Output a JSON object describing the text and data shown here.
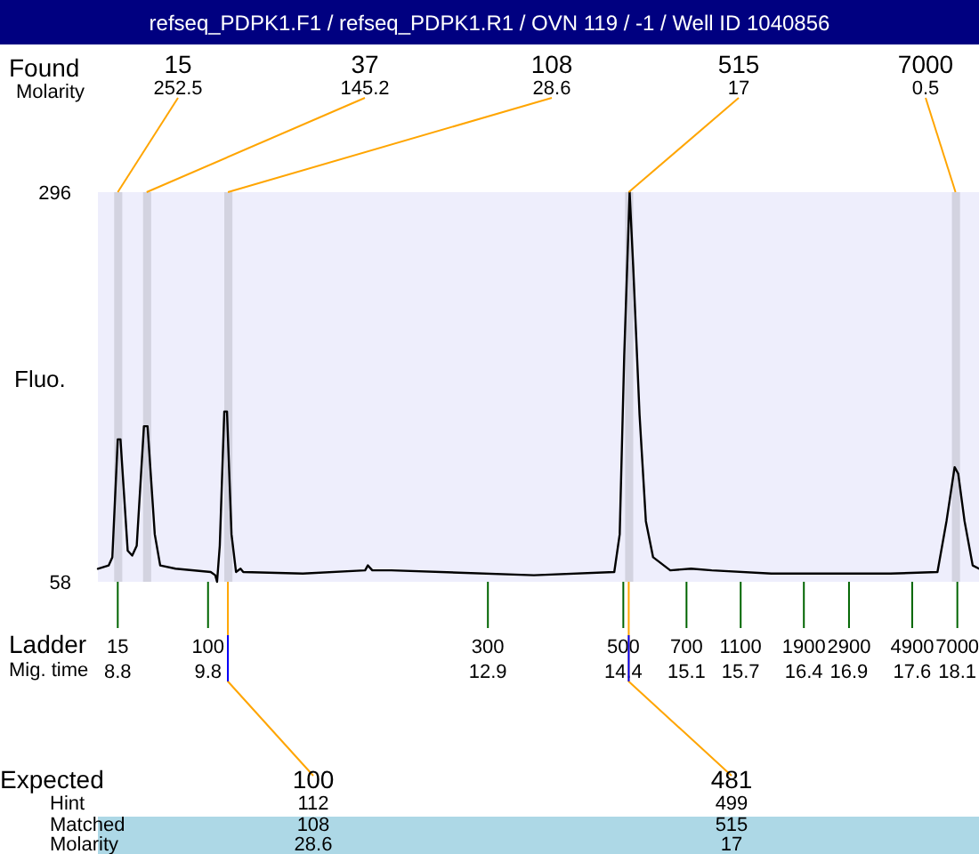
{
  "chart_data": {
    "type": "line",
    "title": "refseq_PDPK1.F1 / refseq_PDPK1.R1 / OVN 119 / -1 / Well ID 1040856",
    "xlabel": "Mig. time",
    "ylabel": "Fluo.",
    "xlim": [
      8.58,
      18.34
    ],
    "ylim": [
      58,
      296
    ],
    "xticks": [
      8.8,
      9.8,
      12.9,
      14.4,
      15.1,
      15.7,
      16.4,
      16.9,
      17.6,
      18.1
    ],
    "yticks": [
      58,
      296
    ],
    "grid": false,
    "marker": "none",
    "line_style": "solid",
    "series": [
      {
        "color": "#000000",
        "x": [
          8.58,
          8.7,
          8.74,
          8.8,
          8.83,
          8.91,
          8.96,
          9.01,
          9.09,
          9.13,
          9.21,
          9.27,
          9.44,
          9.83,
          9.88,
          9.9,
          9.93,
          9.98,
          10.01,
          10.06,
          10.11,
          10.16,
          10.19,
          10.85,
          11.54,
          11.57,
          11.62,
          11.83,
          13.41,
          14.3,
          14.36,
          14.41,
          14.47,
          14.51,
          14.58,
          14.65,
          14.73,
          14.92,
          15.15,
          15.38,
          16.04,
          17.36,
          17.88,
          17.98,
          18.07,
          18.11,
          18.18,
          18.27,
          18.34
        ],
        "values": [
          66,
          68,
          73,
          145,
          145,
          77,
          74,
          80,
          153,
          153,
          87,
          68,
          66,
          64,
          62,
          58,
          80,
          162,
          162,
          87,
          64,
          66,
          64,
          63,
          65,
          68,
          65,
          65,
          62,
          64,
          87,
          196,
          296,
          250,
          160,
          95,
          73,
          65,
          66,
          65,
          63,
          63,
          64,
          95,
          128,
          124,
          95,
          68,
          66
        ]
      }
    ],
    "bands": [
      {
        "axis": "x",
        "from": 8.76,
        "to": 8.85,
        "color": "#d3d3e0"
      },
      {
        "axis": "x",
        "from": 9.08,
        "to": 9.17,
        "color": "#d3d3e0"
      },
      {
        "axis": "x",
        "from": 9.98,
        "to": 10.07,
        "color": "#d3d3e0"
      },
      {
        "axis": "x",
        "from": 14.42,
        "to": 14.51,
        "color": "#d3d3e0"
      },
      {
        "axis": "x",
        "from": 18.04,
        "to": 18.13,
        "color": "#d3d3e0"
      }
    ],
    "annotations": [
      "Found",
      "Molarity",
      "Ladder",
      "15",
      "100",
      "300",
      "500",
      "700",
      "1100",
      "1900",
      "2900",
      "4900",
      "7000",
      "Expected",
      "Hint",
      "Matched",
      "Molarity",
      "112",
      "108",
      "28.6",
      "499",
      "515",
      "17",
      {
        "text": "15",
        "x": 8.8,
        "y": 296
      },
      {
        "text": "252.5",
        "x": 8.8,
        "y": 296
      },
      {
        "text": "37",
        "x": 9.12,
        "y": 296
      },
      {
        "text": "145.2",
        "x": 9.12,
        "y": 296
      },
      {
        "text": "108",
        "x": 10.02,
        "y": 296
      },
      {
        "text": "28.6",
        "x": 10.02,
        "y": 296
      },
      {
        "text": "515",
        "x": 14.46,
        "y": 296
      },
      {
        "text": "17",
        "x": 14.46,
        "y": 296
      },
      {
        "text": "7000",
        "x": 18.08,
        "y": 296
      },
      {
        "text": "0.5",
        "x": 18.08,
        "y": 296
      },
      {
        "text": "100",
        "x": 10.02,
        "y": 58
      },
      {
        "text": "481",
        "x": 14.46,
        "y": 58
      }
    ]
  }
}
